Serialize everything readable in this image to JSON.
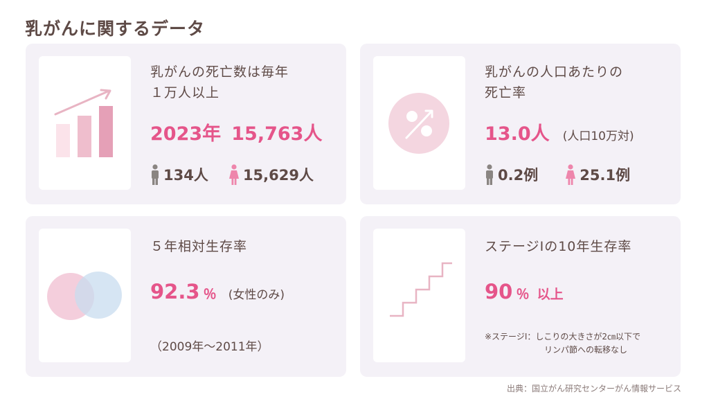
{
  "page_title": "乳がんに関するデータ",
  "cards": [
    {
      "heading": "乳がんの死亡数は毎年\n１万人以上",
      "year": "2023年",
      "total": "15,763人",
      "male": "134人",
      "female": "15,629人",
      "icon": "bar-chart-growth-icon"
    },
    {
      "heading": "乳がんの人口あたりの\n死亡率",
      "value": "13.0人",
      "unit_note": "(人口10万対)",
      "male": "0.2例",
      "female": "25.1例",
      "icon": "percent-circle-icon"
    },
    {
      "heading": "５年相対生存率",
      "value": "92.3",
      "percent": "％",
      "note": "(女性のみ)",
      "period": "（2009年～2011年）",
      "icon": "overlap-circles-icon"
    },
    {
      "heading": "ステージⅠの10年生存率",
      "value": "90",
      "percent": "％",
      "suffix": "以上",
      "footnote_line1": "※ステージⅠ：しこりの大きさが2㎝以下で",
      "footnote_line2": "リンパ節への転移なし",
      "icon": "staircase-icon"
    }
  ],
  "source": "出典：国立がん研究センターがん情報サービス",
  "colors": {
    "accent": "#e5558a",
    "text": "#5e4a46",
    "card_bg": "#f4f1f7",
    "male_icon": "#8a8582",
    "female_icon": "#ee86ac"
  }
}
